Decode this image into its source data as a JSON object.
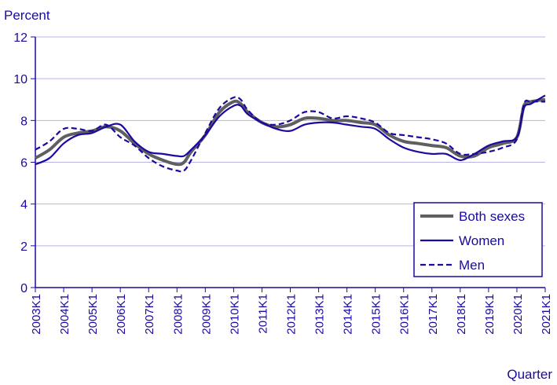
{
  "chart_data": {
    "type": "line",
    "ylabel": "Percent",
    "xlabel": "Quarter",
    "ylim": [
      0,
      12
    ],
    "yticks": [
      "0",
      "2",
      "4",
      "6",
      "8",
      "10",
      "12"
    ],
    "xticks": [
      "2003K1",
      "2004K1",
      "2005K1",
      "2006K1",
      "2007K1",
      "2008K1",
      "2009K1",
      "2010K1",
      "2011K1",
      "2012K1",
      "2013K1",
      "2014K1",
      "2015K1",
      "2016K1",
      "2017K1",
      "2018K1",
      "2019K1",
      "2020K1",
      "2021K1"
    ],
    "grid": "horizontal",
    "legend_position": "bottom-right",
    "x_start": "2003K1",
    "x_end": "2021K1",
    "series": [
      {
        "name": "Both sexes",
        "color": "#5f5f5f",
        "style": "solid",
        "points": [
          [
            "2003K1",
            6.2
          ],
          [
            "2003K3",
            6.6
          ],
          [
            "2004K1",
            7.2
          ],
          [
            "2004K3",
            7.4
          ],
          [
            "2005K1",
            7.5
          ],
          [
            "2005K3",
            7.7
          ],
          [
            "2006K1",
            7.5
          ],
          [
            "2006K3",
            6.9
          ],
          [
            "2007K1",
            6.4
          ],
          [
            "2007K3",
            6.1
          ],
          [
            "2008K1",
            5.9
          ],
          [
            "2008K2",
            6.0
          ],
          [
            "2008K3",
            6.5
          ],
          [
            "2009K1",
            7.3
          ],
          [
            "2009K3",
            8.4
          ],
          [
            "2010K1",
            8.9
          ],
          [
            "2010K2",
            8.8
          ],
          [
            "2010K3",
            8.4
          ],
          [
            "2011K1",
            7.9
          ],
          [
            "2011K3",
            7.7
          ],
          [
            "2012K1",
            7.8
          ],
          [
            "2012K3",
            8.1
          ],
          [
            "2013K1",
            8.1
          ],
          [
            "2013K3",
            8.0
          ],
          [
            "2014K1",
            8.0
          ],
          [
            "2014K3",
            7.9
          ],
          [
            "2015K1",
            7.8
          ],
          [
            "2015K3",
            7.3
          ],
          [
            "2016K1",
            7.0
          ],
          [
            "2016K3",
            6.9
          ],
          [
            "2017K1",
            6.8
          ],
          [
            "2017K3",
            6.7
          ],
          [
            "2018K1",
            6.3
          ],
          [
            "2018K3",
            6.3
          ],
          [
            "2019K1",
            6.7
          ],
          [
            "2019K3",
            6.9
          ],
          [
            "2020K1",
            7.2
          ],
          [
            "2020K2",
            8.7
          ],
          [
            "2020K3",
            8.9
          ],
          [
            "2021K1",
            9.0
          ]
        ]
      },
      {
        "name": "Women",
        "color": "#1a0aa0",
        "style": "solid",
        "points": [
          [
            "2003K1",
            5.9
          ],
          [
            "2003K3",
            6.2
          ],
          [
            "2004K1",
            6.9
          ],
          [
            "2004K3",
            7.3
          ],
          [
            "2005K1",
            7.4
          ],
          [
            "2005K3",
            7.7
          ],
          [
            "2006K1",
            7.8
          ],
          [
            "2006K3",
            7.0
          ],
          [
            "2007K1",
            6.5
          ],
          [
            "2007K3",
            6.4
          ],
          [
            "2008K1",
            6.3
          ],
          [
            "2008K2",
            6.3
          ],
          [
            "2008K3",
            6.6
          ],
          [
            "2009K1",
            7.3
          ],
          [
            "2009K3",
            8.2
          ],
          [
            "2010K1",
            8.7
          ],
          [
            "2010K2",
            8.7
          ],
          [
            "2010K3",
            8.3
          ],
          [
            "2011K1",
            7.9
          ],
          [
            "2011K3",
            7.6
          ],
          [
            "2012K1",
            7.5
          ],
          [
            "2012K3",
            7.8
          ],
          [
            "2013K1",
            7.9
          ],
          [
            "2013K3",
            7.9
          ],
          [
            "2014K1",
            7.8
          ],
          [
            "2014K3",
            7.7
          ],
          [
            "2015K1",
            7.6
          ],
          [
            "2015K3",
            7.1
          ],
          [
            "2016K1",
            6.7
          ],
          [
            "2016K3",
            6.5
          ],
          [
            "2017K1",
            6.4
          ],
          [
            "2017K3",
            6.4
          ],
          [
            "2018K1",
            6.1
          ],
          [
            "2018K3",
            6.4
          ],
          [
            "2019K1",
            6.8
          ],
          [
            "2019K3",
            7.0
          ],
          [
            "2020K1",
            7.2
          ],
          [
            "2020K2",
            8.6
          ],
          [
            "2020K3",
            8.8
          ],
          [
            "2021K1",
            9.2
          ]
        ]
      },
      {
        "name": "Men",
        "color": "#1a0aa0",
        "style": "dashed",
        "points": [
          [
            "2003K1",
            6.6
          ],
          [
            "2003K3",
            7.0
          ],
          [
            "2004K1",
            7.6
          ],
          [
            "2004K3",
            7.6
          ],
          [
            "2005K1",
            7.5
          ],
          [
            "2005K3",
            7.8
          ],
          [
            "2006K1",
            7.2
          ],
          [
            "2006K3",
            6.8
          ],
          [
            "2007K1",
            6.2
          ],
          [
            "2007K3",
            5.8
          ],
          [
            "2008K1",
            5.6
          ],
          [
            "2008K2",
            5.6
          ],
          [
            "2008K3",
            6.1
          ],
          [
            "2009K1",
            7.4
          ],
          [
            "2009K3",
            8.6
          ],
          [
            "2010K1",
            9.1
          ],
          [
            "2010K2",
            9.0
          ],
          [
            "2010K3",
            8.5
          ],
          [
            "2011K1",
            7.9
          ],
          [
            "2011K3",
            7.8
          ],
          [
            "2012K1",
            8.0
          ],
          [
            "2012K3",
            8.4
          ],
          [
            "2013K1",
            8.4
          ],
          [
            "2013K3",
            8.1
          ],
          [
            "2014K1",
            8.2
          ],
          [
            "2014K3",
            8.1
          ],
          [
            "2015K1",
            7.9
          ],
          [
            "2015K3",
            7.4
          ],
          [
            "2016K1",
            7.3
          ],
          [
            "2016K3",
            7.2
          ],
          [
            "2017K1",
            7.1
          ],
          [
            "2017K3",
            6.9
          ],
          [
            "2018K1",
            6.4
          ],
          [
            "2018K3",
            6.4
          ],
          [
            "2019K1",
            6.5
          ],
          [
            "2019K3",
            6.7
          ],
          [
            "2020K1",
            7.1
          ],
          [
            "2020K2",
            8.8
          ],
          [
            "2020K3",
            8.9
          ],
          [
            "2021K1",
            8.9
          ]
        ]
      }
    ]
  }
}
